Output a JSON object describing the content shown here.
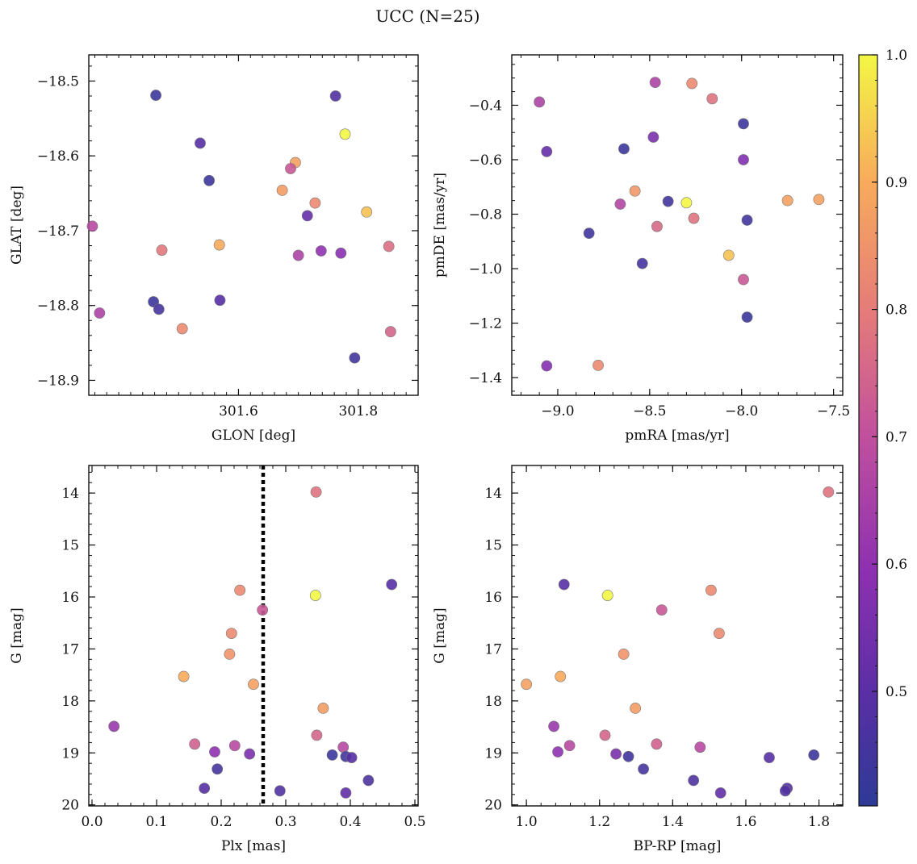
{
  "figure": {
    "title": "UCC (N=25)"
  },
  "colorbar": {
    "range": [
      0.41,
      1.0
    ],
    "ticks": [
      0.5,
      0.6,
      0.7,
      0.8,
      0.9,
      1.0
    ],
    "tick_labels": [
      "0.5",
      "0.6",
      "0.7",
      "0.8",
      "0.9",
      "1.0"
    ],
    "colormap": "plasma"
  },
  "chart_data": [
    {
      "type": "scatter",
      "xlabel": "GLON [deg]",
      "ylabel": "GLAT [deg]",
      "xlim": [
        301.35,
        301.9
      ],
      "ylim": [
        -18.92,
        -18.465
      ],
      "y_inverted": false,
      "xticks": [
        301.6,
        301.8
      ],
      "xtick_labels": [
        "301.6",
        "301.8"
      ],
      "xminor": 0.02,
      "yticks": [
        -18.5,
        -18.6,
        -18.7,
        -18.8,
        -18.9
      ],
      "ytick_labels": [
        "−18.5",
        "−18.6",
        "−18.7",
        "−18.8",
        "−18.9"
      ],
      "yminor": 0.02,
      "points": [
        {
          "x": 301.462,
          "y": -18.519,
          "c": 0.44
        },
        {
          "x": 301.762,
          "y": -18.52,
          "c": 0.48
        },
        {
          "x": 301.778,
          "y": -18.571,
          "c": 1.0
        },
        {
          "x": 301.536,
          "y": -18.583,
          "c": 0.49
        },
        {
          "x": 301.551,
          "y": -18.633,
          "c": 0.44
        },
        {
          "x": 301.695,
          "y": -18.609,
          "c": 0.88
        },
        {
          "x": 301.673,
          "y": -18.646,
          "c": 0.87
        },
        {
          "x": 301.687,
          "y": -18.617,
          "c": 0.72
        },
        {
          "x": 301.728,
          "y": -18.663,
          "c": 0.83
        },
        {
          "x": 301.715,
          "y": -18.68,
          "c": 0.52
        },
        {
          "x": 301.814,
          "y": -18.675,
          "c": 0.93
        },
        {
          "x": 301.356,
          "y": -18.694,
          "c": 0.68
        },
        {
          "x": 301.472,
          "y": -18.726,
          "c": 0.79
        },
        {
          "x": 301.568,
          "y": -18.719,
          "c": 0.9
        },
        {
          "x": 301.7,
          "y": -18.733,
          "c": 0.66
        },
        {
          "x": 301.738,
          "y": -18.727,
          "c": 0.6
        },
        {
          "x": 301.771,
          "y": -18.73,
          "c": 0.59
        },
        {
          "x": 301.851,
          "y": -18.721,
          "c": 0.77
        },
        {
          "x": 301.368,
          "y": -18.81,
          "c": 0.66
        },
        {
          "x": 301.458,
          "y": -18.795,
          "c": 0.44
        },
        {
          "x": 301.467,
          "y": -18.805,
          "c": 0.46
        },
        {
          "x": 301.506,
          "y": -18.831,
          "c": 0.83
        },
        {
          "x": 301.569,
          "y": -18.793,
          "c": 0.49
        },
        {
          "x": 301.794,
          "y": -18.87,
          "c": 0.45
        },
        {
          "x": 301.854,
          "y": -18.835,
          "c": 0.75
        }
      ]
    },
    {
      "type": "scatter",
      "xlabel": "pmRA [mas/yr]",
      "ylabel": "pmDE [mas/yr]",
      "xlim": [
        -9.25,
        -7.45
      ],
      "ylim": [
        -1.465,
        -0.215
      ],
      "y_inverted": false,
      "xticks": [
        -9.0,
        -8.5,
        -8.0,
        -7.5
      ],
      "xtick_labels": [
        "−9.0",
        "−8.5",
        "−8.0",
        "−7.5"
      ],
      "xminor": 0.1,
      "yticks": [
        -0.4,
        -0.6,
        -0.8,
        -1.0,
        -1.2,
        -1.4
      ],
      "ytick_labels": [
        "−0.4",
        "−0.6",
        "−0.8",
        "−1.0",
        "−1.2",
        "−1.4"
      ],
      "yminor": 0.05,
      "points": [
        {
          "x": -9.1,
          "y": -0.388,
          "c": 0.66
        },
        {
          "x": -9.06,
          "y": -0.57,
          "c": 0.52
        },
        {
          "x": -8.47,
          "y": -0.316,
          "c": 0.66
        },
        {
          "x": -8.27,
          "y": -0.32,
          "c": 0.83
        },
        {
          "x": -8.16,
          "y": -0.376,
          "c": 0.78
        },
        {
          "x": -7.99,
          "y": -0.468,
          "c": 0.44
        },
        {
          "x": -8.48,
          "y": -0.517,
          "c": 0.56
        },
        {
          "x": -8.64,
          "y": -0.56,
          "c": 0.44
        },
        {
          "x": -7.99,
          "y": -0.6,
          "c": 0.57
        },
        {
          "x": -8.58,
          "y": -0.715,
          "c": 0.86
        },
        {
          "x": -8.66,
          "y": -0.763,
          "c": 0.67
        },
        {
          "x": -8.4,
          "y": -0.753,
          "c": 0.45
        },
        {
          "x": -8.3,
          "y": -0.758,
          "c": 1.0
        },
        {
          "x": -7.75,
          "y": -0.75,
          "c": 0.88
        },
        {
          "x": -7.58,
          "y": -0.746,
          "c": 0.88
        },
        {
          "x": -8.26,
          "y": -0.815,
          "c": 0.78
        },
        {
          "x": -8.46,
          "y": -0.845,
          "c": 0.76
        },
        {
          "x": -7.97,
          "y": -0.822,
          "c": 0.45
        },
        {
          "x": -8.83,
          "y": -0.87,
          "c": 0.45
        },
        {
          "x": -8.54,
          "y": -0.981,
          "c": 0.46
        },
        {
          "x": -8.07,
          "y": -0.951,
          "c": 0.93
        },
        {
          "x": -7.99,
          "y": -1.04,
          "c": 0.72
        },
        {
          "x": -7.97,
          "y": -1.178,
          "c": 0.44
        },
        {
          "x": -9.06,
          "y": -1.357,
          "c": 0.58
        },
        {
          "x": -8.78,
          "y": -1.355,
          "c": 0.83
        }
      ]
    },
    {
      "type": "scatter",
      "xlabel": "Plx [mas]",
      "ylabel": "G [mag]",
      "xlim": [
        -0.005,
        0.505
      ],
      "ylim": [
        13.47,
        20.02
      ],
      "y_inverted": true,
      "vline": 0.265,
      "xticks": [
        0.0,
        0.1,
        0.2,
        0.3,
        0.4,
        0.5
      ],
      "xtick_labels": [
        "0.0",
        "0.1",
        "0.2",
        "0.3",
        "0.4",
        "0.5"
      ],
      "xminor": 0.02,
      "yticks": [
        14,
        15,
        16,
        17,
        18,
        19,
        20
      ],
      "ytick_labels": [
        "14",
        "15",
        "16",
        "17",
        "18",
        "19",
        "20"
      ],
      "yminor": 0.2,
      "points": [
        {
          "x": 0.347,
          "y": 13.98,
          "c": 0.78
        },
        {
          "x": 0.464,
          "y": 15.76,
          "c": 0.49
        },
        {
          "x": 0.346,
          "y": 15.97,
          "c": 1.0
        },
        {
          "x": 0.229,
          "y": 15.87,
          "c": 0.83
        },
        {
          "x": 0.264,
          "y": 16.25,
          "c": 0.72
        },
        {
          "x": 0.216,
          "y": 16.7,
          "c": 0.83
        },
        {
          "x": 0.213,
          "y": 17.1,
          "c": 0.85
        },
        {
          "x": 0.142,
          "y": 17.53,
          "c": 0.9
        },
        {
          "x": 0.25,
          "y": 17.68,
          "c": 0.88
        },
        {
          "x": 0.358,
          "y": 18.14,
          "c": 0.87
        },
        {
          "x": 0.034,
          "y": 18.49,
          "c": 0.62
        },
        {
          "x": 0.348,
          "y": 18.66,
          "c": 0.75
        },
        {
          "x": 0.159,
          "y": 18.83,
          "c": 0.74
        },
        {
          "x": 0.221,
          "y": 18.86,
          "c": 0.68
        },
        {
          "x": 0.389,
          "y": 18.89,
          "c": 0.68
        },
        {
          "x": 0.19,
          "y": 18.98,
          "c": 0.6
        },
        {
          "x": 0.244,
          "y": 19.02,
          "c": 0.56
        },
        {
          "x": 0.372,
          "y": 19.04,
          "c": 0.44
        },
        {
          "x": 0.393,
          "y": 19.07,
          "c": 0.45
        },
        {
          "x": 0.402,
          "y": 19.09,
          "c": 0.49
        },
        {
          "x": 0.194,
          "y": 19.31,
          "c": 0.46
        },
        {
          "x": 0.428,
          "y": 19.53,
          "c": 0.47
        },
        {
          "x": 0.174,
          "y": 19.68,
          "c": 0.49
        },
        {
          "x": 0.291,
          "y": 19.73,
          "c": 0.48
        },
        {
          "x": 0.393,
          "y": 19.77,
          "c": 0.51
        }
      ]
    },
    {
      "type": "scatter",
      "xlabel": "BP-RP [mag]",
      "ylabel": "G [mag]",
      "xlim": [
        0.96,
        1.865
      ],
      "ylim": [
        13.47,
        20.02
      ],
      "y_inverted": true,
      "xticks": [
        1.0,
        1.2,
        1.4,
        1.6,
        1.8
      ],
      "xtick_labels": [
        "1.0",
        "1.2",
        "1.4",
        "1.6",
        "1.8"
      ],
      "xminor": 0.04,
      "yticks": [
        14,
        15,
        16,
        17,
        18,
        19,
        20
      ],
      "ytick_labels": [
        "14",
        "15",
        "16",
        "17",
        "18",
        "19",
        "20"
      ],
      "yminor": 0.2,
      "points": [
        {
          "x": 1.826,
          "y": 13.98,
          "c": 0.78
        },
        {
          "x": 1.103,
          "y": 15.76,
          "c": 0.49
        },
        {
          "x": 1.222,
          "y": 15.97,
          "c": 1.0
        },
        {
          "x": 1.505,
          "y": 15.87,
          "c": 0.83
        },
        {
          "x": 1.37,
          "y": 16.25,
          "c": 0.72
        },
        {
          "x": 1.527,
          "y": 16.7,
          "c": 0.83
        },
        {
          "x": 1.266,
          "y": 17.1,
          "c": 0.85
        },
        {
          "x": 1.093,
          "y": 17.53,
          "c": 0.9
        },
        {
          "x": 1.0,
          "y": 17.68,
          "c": 0.88
        },
        {
          "x": 1.298,
          "y": 18.14,
          "c": 0.87
        },
        {
          "x": 1.075,
          "y": 18.49,
          "c": 0.62
        },
        {
          "x": 1.215,
          "y": 18.66,
          "c": 0.75
        },
        {
          "x": 1.356,
          "y": 18.83,
          "c": 0.74
        },
        {
          "x": 1.118,
          "y": 18.86,
          "c": 0.68
        },
        {
          "x": 1.475,
          "y": 18.89,
          "c": 0.68
        },
        {
          "x": 1.086,
          "y": 18.98,
          "c": 0.6
        },
        {
          "x": 1.245,
          "y": 19.02,
          "c": 0.56
        },
        {
          "x": 1.786,
          "y": 19.04,
          "c": 0.44
        },
        {
          "x": 1.279,
          "y": 19.07,
          "c": 0.45
        },
        {
          "x": 1.664,
          "y": 19.09,
          "c": 0.49
        },
        {
          "x": 1.32,
          "y": 19.31,
          "c": 0.46
        },
        {
          "x": 1.457,
          "y": 19.53,
          "c": 0.47
        },
        {
          "x": 1.713,
          "y": 19.68,
          "c": 0.49
        },
        {
          "x": 1.708,
          "y": 19.73,
          "c": 0.48
        },
        {
          "x": 1.531,
          "y": 19.77,
          "c": 0.51
        }
      ]
    }
  ]
}
